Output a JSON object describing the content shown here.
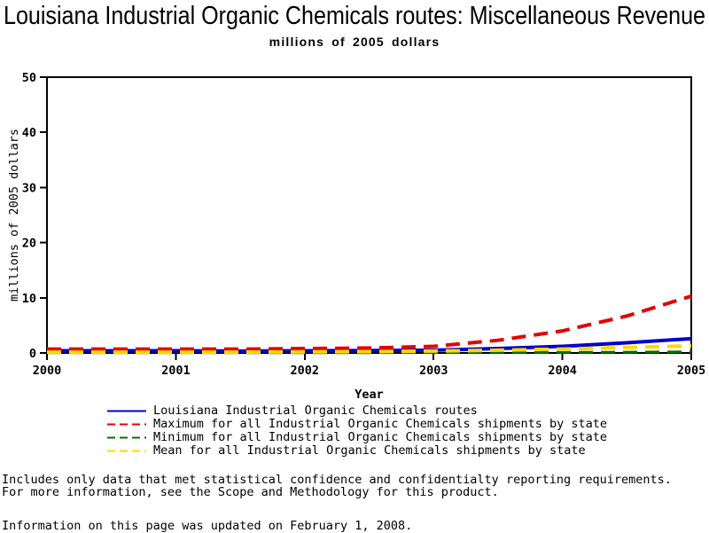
{
  "header": {
    "title": "Louisiana Industrial Organic Chemicals routes: Miscellaneous Revenue",
    "subtitle": "millions of 2005 dollars"
  },
  "chart_data": {
    "type": "line",
    "title": "Louisiana Industrial Organic Chemicals routes: Miscellaneous Revenue",
    "subtitle": "millions of 2005 dollars",
    "xlabel": "Year",
    "ylabel": "millions of 2005 dollars",
    "xlim": [
      2000,
      2005
    ],
    "ylim": [
      0,
      50
    ],
    "x_ticks": [
      2000,
      2001,
      2002,
      2003,
      2004,
      2005
    ],
    "y_ticks": [
      0,
      10,
      20,
      30,
      40,
      50
    ],
    "grid": false,
    "frame": true,
    "legend_position": "bottom",
    "x": [
      2000,
      2000.5,
      2001,
      2001.5,
      2002,
      2002.5,
      2003,
      2003.5,
      2004,
      2004.5,
      2005
    ],
    "series": [
      {
        "name": "Louisiana Industrial Organic Chemicals routes",
        "color": "#0000CD",
        "line_style": "solid",
        "width": 4,
        "values": [
          0.4,
          0.4,
          0.4,
          0.35,
          0.4,
          0.45,
          0.5,
          0.8,
          1.2,
          1.85,
          2.6
        ]
      },
      {
        "name": "Maximum for all Industrial Organic Chemicals shipments by state",
        "color": "#E60000",
        "line_style": "dashed",
        "width": 4,
        "values": [
          0.7,
          0.7,
          0.7,
          0.7,
          0.8,
          0.9,
          1.2,
          2.3,
          4.0,
          6.7,
          10.3
        ]
      },
      {
        "name": "Minimum for all Industrial Organic Chemicals shipments by state",
        "color": "#007000",
        "line_style": "dashed",
        "width": 3,
        "values": [
          0.05,
          0.05,
          0.05,
          0.05,
          0.05,
          0.05,
          0.1,
          0.1,
          0.1,
          0.15,
          0.2
        ]
      },
      {
        "name": "Mean for all Industrial Organic Chemicals shipments by state",
        "color": "#FFD700",
        "line_style": "dashed",
        "width": 4,
        "values": [
          0.15,
          0.15,
          0.15,
          0.15,
          0.2,
          0.25,
          0.35,
          0.5,
          0.7,
          1.0,
          1.3
        ]
      }
    ]
  },
  "footnotes": {
    "line1": "Includes only data that met statistical confidence and confidentialty reporting requirements.",
    "line2": "For more information, see the Scope and Methodology for this product.",
    "updated": "Information on this page was updated on February 1, 2008."
  },
  "colors": {
    "axis": "#000000",
    "background": "#ffffff"
  }
}
